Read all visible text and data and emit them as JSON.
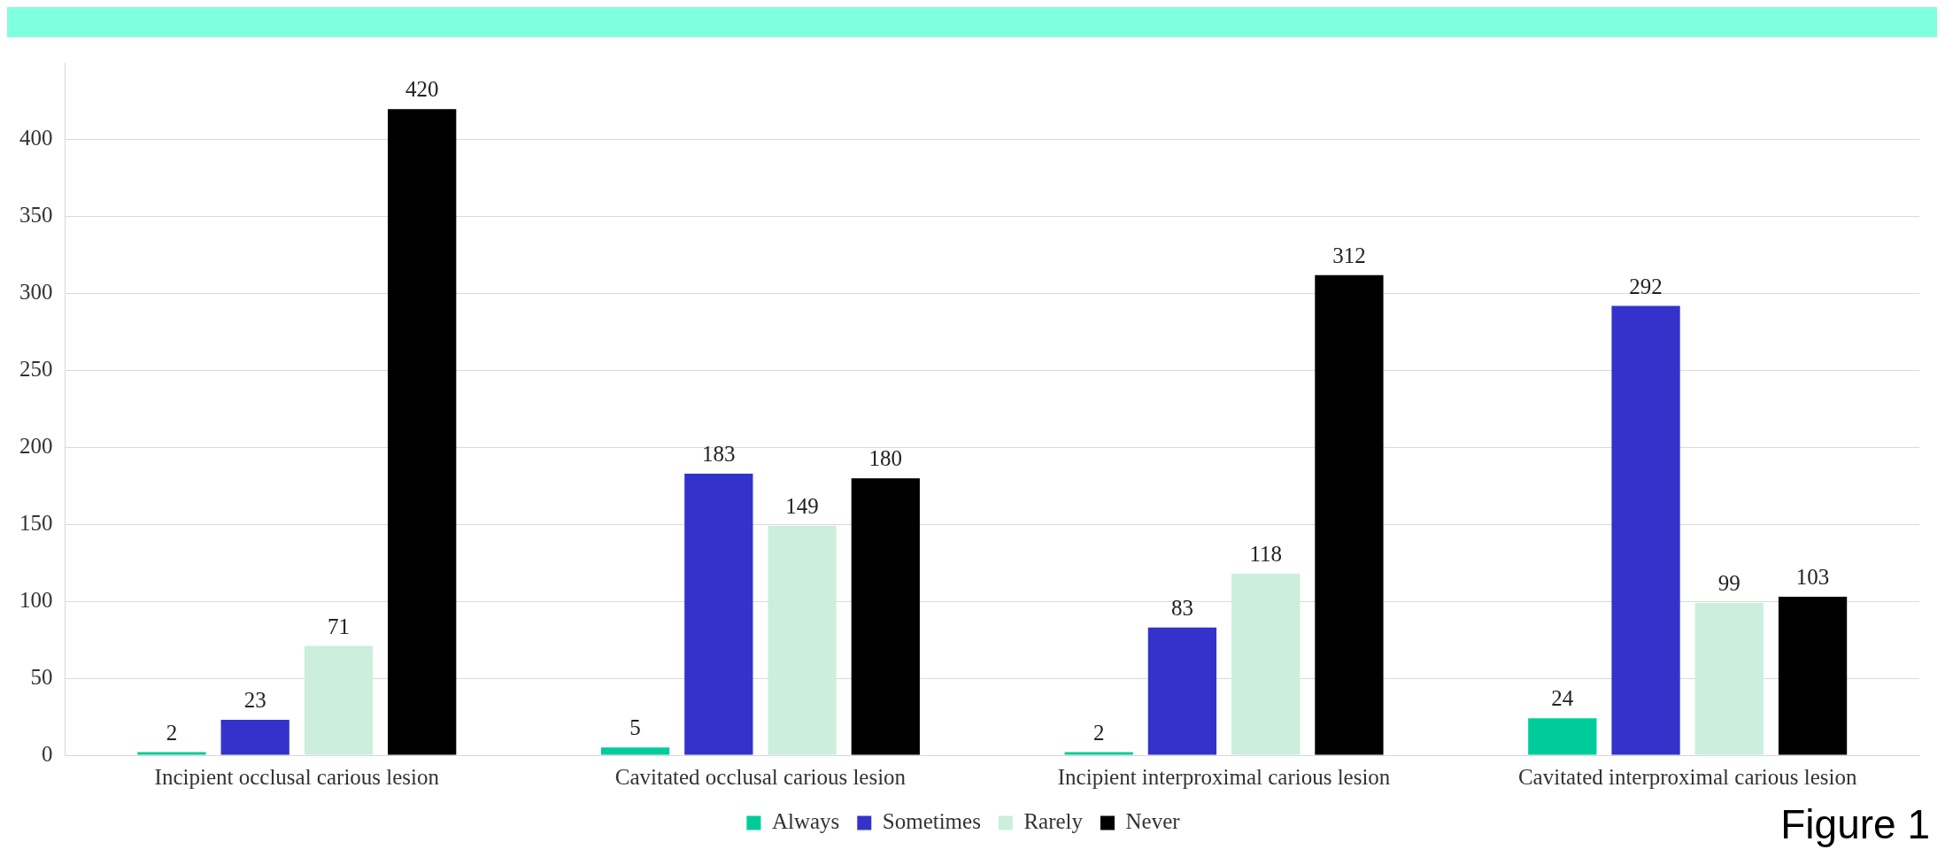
{
  "chart_data": {
    "type": "bar",
    "categories": [
      "Incipient occlusal carious lesion",
      "Cavitated occlusal carious lesion",
      "Incipient interproximal carious lesion",
      "Cavitated interproximal carious lesion"
    ],
    "series": [
      {
        "name": "Always",
        "color": "#00cc99",
        "values": [
          2,
          5,
          2,
          24
        ]
      },
      {
        "name": "Sometimes",
        "color": "#3333cc",
        "values": [
          23,
          183,
          83,
          292
        ]
      },
      {
        "name": "Rarely",
        "color": "#cceedd",
        "values": [
          71,
          149,
          118,
          99
        ]
      },
      {
        "name": "Never",
        "color": "#000000",
        "values": [
          420,
          180,
          312,
          103
        ]
      }
    ],
    "ylim": [
      0,
      450
    ],
    "yticks": [
      0,
      50,
      100,
      150,
      200,
      250,
      300,
      350,
      400
    ],
    "grid": "y",
    "legend": "bottom",
    "data_labels": true,
    "annotations": [
      "Figure 1"
    ]
  }
}
